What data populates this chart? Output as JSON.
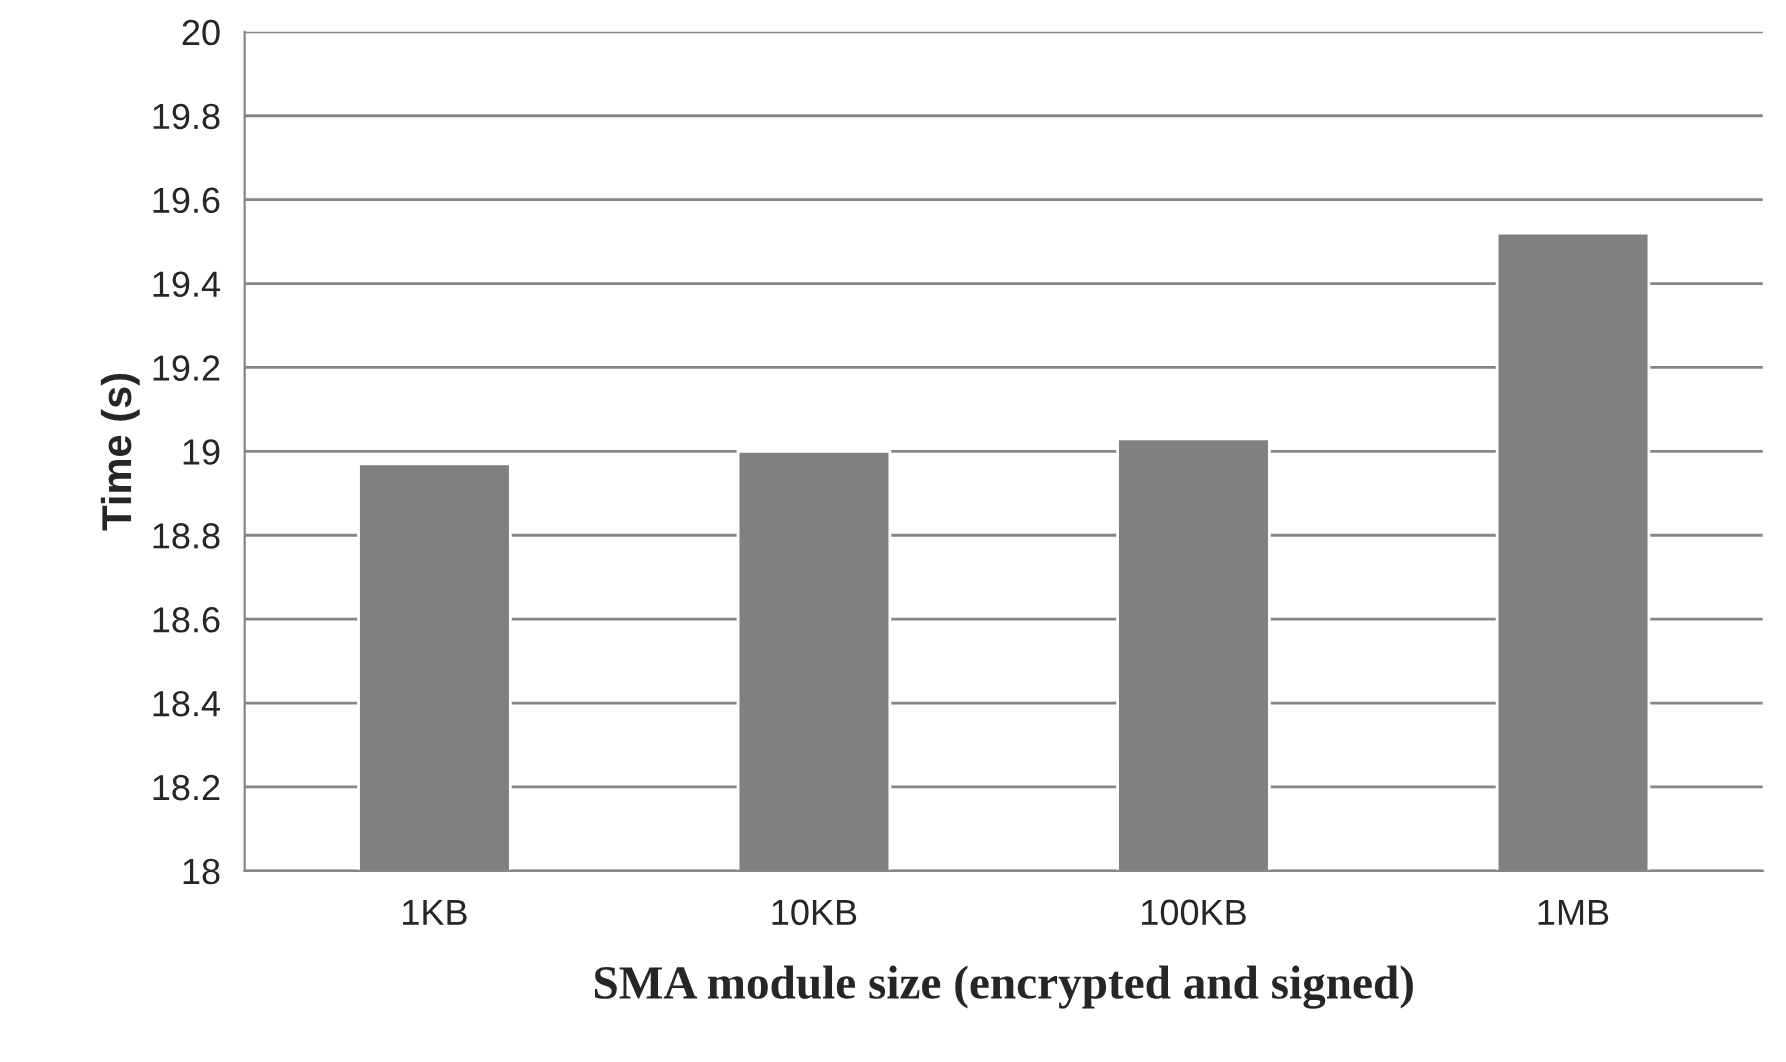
{
  "chart_data": {
    "type": "bar",
    "xlabel": "SMA module size (encrypted and signed)",
    "ylabel": "Time (s)",
    "categories": [
      "1KB",
      "10KB",
      "100KB",
      "1MB"
    ],
    "values": [
      18.97,
      19.0,
      19.03,
      19.52
    ],
    "color": "#808080",
    "ylim": [
      18,
      20
    ],
    "yticks": [
      18,
      18.2,
      18.4,
      18.6,
      18.8,
      19,
      19.2,
      19.4,
      19.6,
      19.8,
      20
    ],
    "grid": "y",
    "legend": false
  }
}
